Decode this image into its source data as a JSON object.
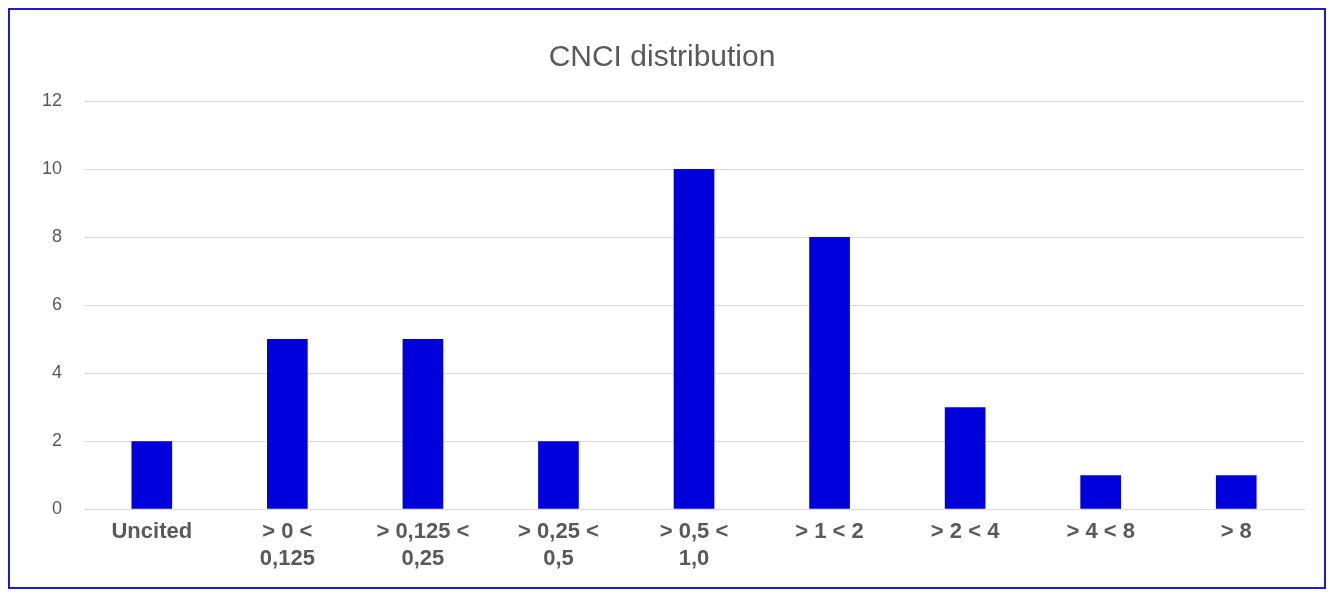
{
  "chart_data": {
    "type": "bar",
    "title": "CNCI distribution",
    "categories": [
      "Uncited",
      "> 0 < 0,125",
      "> 0,125 < 0,25",
      "> 0,25 < 0,5",
      "> 0,5 < 1,0",
      "> 1 < 2",
      "> 2 < 4",
      "> 4 < 8",
      "> 8"
    ],
    "values": [
      2,
      5,
      5,
      2,
      10,
      8,
      3,
      1,
      1
    ],
    "color": "#0000dd",
    "ylim": [
      0,
      12
    ],
    "yticks": [
      0,
      2,
      4,
      6,
      8,
      10,
      12
    ],
    "grid": "y",
    "legend": false
  }
}
